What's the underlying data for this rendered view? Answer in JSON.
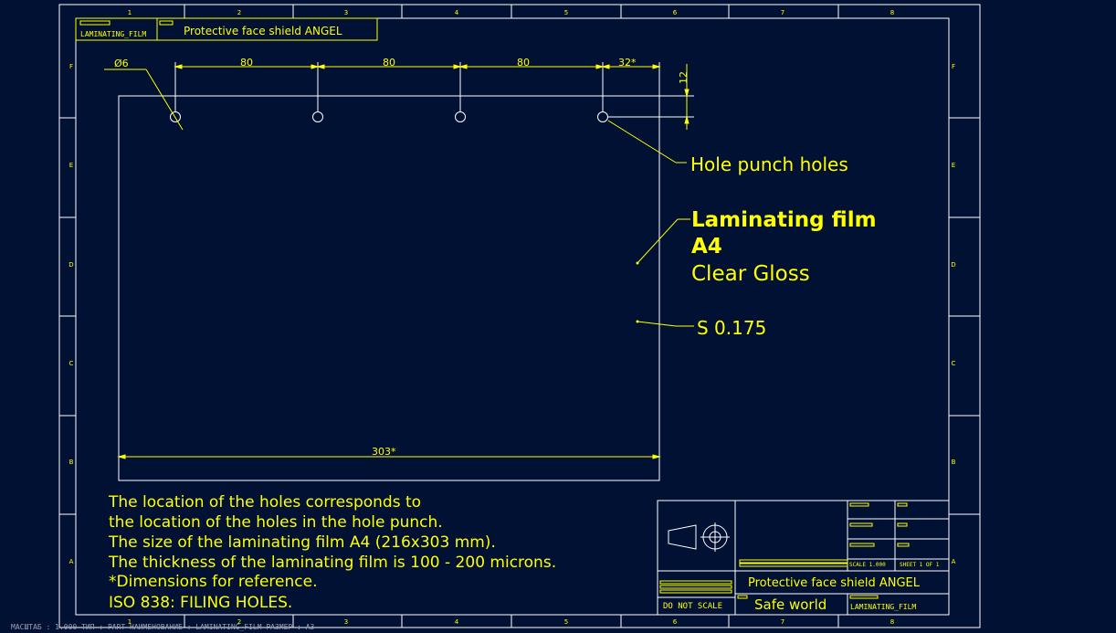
{
  "title_block": {
    "corner_tag": "LAMINATING_FILM",
    "title": "Protective face shield ANGEL",
    "company": "Safe world",
    "part_name": "LAMINATING_FILM",
    "do_not_scale": "DO NOT SCALE",
    "scale": "SCALE 1.000",
    "sheet": "SHEET 1 OF 1"
  },
  "dimensions": {
    "hole_diameter": "Ø6",
    "spacing_1": "80",
    "spacing_2": "80",
    "spacing_3": "80",
    "edge_offset": "32*",
    "top_offset": "12",
    "film_width": "303*"
  },
  "callouts": {
    "holes": "Hole punch holes",
    "material_line1": "Laminating film",
    "material_line2": "A4",
    "material_finish": "Clear Gloss",
    "thickness": "S 0.175"
  },
  "notes": [
    "The location of the holes corresponds to",
    "the location of the holes in the hole punch.",
    "The size of the laminating film A4 (216x303 mm).",
    "The thickness of the laminating film is 100 - 200 microns.",
    "*Dimensions for reference.",
    "ISO 838: FILING HOLES."
  ],
  "ruler": {
    "columns": [
      "1",
      "2",
      "3",
      "4",
      "5",
      "6",
      "7",
      "8"
    ],
    "rows": [
      "F",
      "E",
      "D",
      "C",
      "B",
      "A"
    ]
  },
  "status_bar": "МАСШТАБ : 1.000   ТИП : PART  НАИМЕНОВАНИЕ : LAMINATING_FILM  РАЗМЕР : A3",
  "colors": {
    "background": "#001133",
    "lines": "#ffffff",
    "text": "#ffff00",
    "leaders": "#ffff00"
  }
}
